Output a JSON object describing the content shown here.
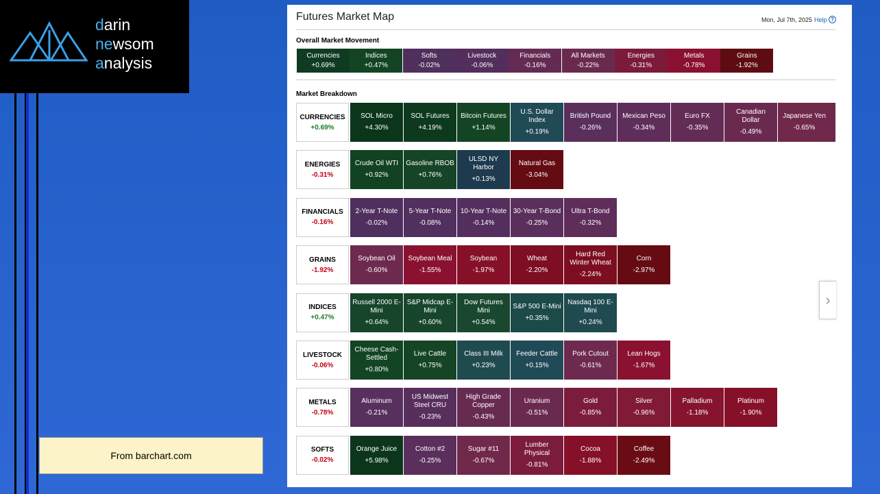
{
  "logo": {
    "lines": [
      {
        "accent": "d",
        "rest": "arin"
      },
      {
        "accent": "ne",
        "rest": "wsom"
      },
      {
        "accent": "a",
        "rest": "nalysis"
      }
    ]
  },
  "note": "From barchart.com",
  "header": {
    "title": "Futures Market Map",
    "date": "Mon, Jul 7th, 2025",
    "help": "Help"
  },
  "overall": {
    "title": "Overall Market Movement",
    "tiles": [
      {
        "name": "Currencies",
        "change": "+0.69%",
        "color": "#0f3b22"
      },
      {
        "name": "Indices",
        "change": "+0.47%",
        "color": "#134523"
      },
      {
        "name": "Softs",
        "change": "-0.02%",
        "color": "#4f2f5c"
      },
      {
        "name": "Livestock",
        "change": "-0.06%",
        "color": "#532d5b"
      },
      {
        "name": "Financials",
        "change": "-0.16%",
        "color": "#642a52"
      },
      {
        "name": "All Markets",
        "change": "-0.22%",
        "color": "#6a2a4d"
      },
      {
        "name": "Energies",
        "change": "-0.31%",
        "color": "#7c1a3a"
      },
      {
        "name": "Metals",
        "change": "-0.78%",
        "color": "#8a1030"
      },
      {
        "name": "Grains",
        "change": "-1.92%",
        "color": "#5e0b12"
      }
    ]
  },
  "breakdown": {
    "title": "Market Breakdown",
    "groups": [
      {
        "name": "CURRENCIES",
        "change": "+0.69%",
        "tiles": [
          {
            "name": "SOL Micro",
            "change": "+4.30%",
            "color": "#0b361c"
          },
          {
            "name": "SOL Futures",
            "change": "+4.19%",
            "color": "#0d3a1e"
          },
          {
            "name": "Bitcoin Futures",
            "change": "+1.14%",
            "color": "#134524"
          },
          {
            "name": "U.S. Dollar Index",
            "change": "+0.19%",
            "color": "#214a57"
          },
          {
            "name": "British Pound",
            "change": "-0.26%",
            "color": "#5a2f5c"
          },
          {
            "name": "Mexican Peso",
            "change": "-0.34%",
            "color": "#5e2d5a"
          },
          {
            "name": "Euro FX",
            "change": "-0.35%",
            "color": "#632c56"
          },
          {
            "name": "Canadian Dollar",
            "change": "-0.49%",
            "color": "#6a2a50"
          },
          {
            "name": "Japanese Yen",
            "change": "-0.65%",
            "color": "#70284b"
          }
        ]
      },
      {
        "name": "ENERGIES",
        "change": "-0.31%",
        "tiles": [
          {
            "name": "Crude Oil WTI",
            "change": "+0.92%",
            "color": "#114222"
          },
          {
            "name": "Gasoline RBOB",
            "change": "+0.76%",
            "color": "#154526"
          },
          {
            "name": "ULSD NY Harbor",
            "change": "+0.13%",
            "color": "#1d3a4e"
          },
          {
            "name": "Natural Gas",
            "change": "-3.04%",
            "color": "#650b12"
          }
        ]
      },
      {
        "name": "FINANCIALS",
        "change": "-0.16%",
        "tiles": [
          {
            "name": "2-Year T-Note",
            "change": "-0.02%",
            "color": "#4f2f5e"
          },
          {
            "name": "5-Year T-Note",
            "change": "-0.08%",
            "color": "#512f5e"
          },
          {
            "name": "10-Year T-Note",
            "change": "-0.14%",
            "color": "#542e5d"
          },
          {
            "name": "30-Year T-Bond",
            "change": "-0.25%",
            "color": "#5a2f5c"
          },
          {
            "name": "Ultra T-Bond",
            "change": "-0.32%",
            "color": "#5e2d5a"
          }
        ]
      },
      {
        "name": "GRAINS",
        "change": "-1.92%",
        "tiles": [
          {
            "name": "Soybean Oil",
            "change": "-0.60%",
            "color": "#6e2a4e"
          },
          {
            "name": "Soybean Meal",
            "change": "-1.55%",
            "color": "#8a1230"
          },
          {
            "name": "Soybean",
            "change": "-1.97%",
            "color": "#861028"
          },
          {
            "name": "Wheat",
            "change": "-2.20%",
            "color": "#7e0e22"
          },
          {
            "name": "Hard Red Winter Wheat",
            "change": "-2.24%",
            "color": "#7c0e20"
          },
          {
            "name": "Corn",
            "change": "-2.97%",
            "color": "#660b12"
          }
        ]
      },
      {
        "name": "INDICES",
        "change": "+0.47%",
        "tiles": [
          {
            "name": "Russell 2000 E-Mini",
            "change": "+0.64%",
            "color": "#16452a"
          },
          {
            "name": "S&P Midcap E-Mini",
            "change": "+0.60%",
            "color": "#17462c"
          },
          {
            "name": "Dow Futures Mini",
            "change": "+0.54%",
            "color": "#19472f"
          },
          {
            "name": "S&P 500 E-Mini",
            "change": "+0.35%",
            "color": "#1c4a48"
          },
          {
            "name": "Nasdaq 100 E-Mini",
            "change": "+0.24%",
            "color": "#1f4a50"
          }
        ]
      },
      {
        "name": "LIVESTOCK",
        "change": "-0.06%",
        "tiles": [
          {
            "name": "Cheese Cash-Settled",
            "change": "+0.80%",
            "color": "#134424"
          },
          {
            "name": "Live Cattle",
            "change": "+0.75%",
            "color": "#154526"
          },
          {
            "name": "Class III Milk",
            "change": "+0.23%",
            "color": "#1f4a50"
          },
          {
            "name": "Feeder Cattle",
            "change": "+0.15%",
            "color": "#214a57"
          },
          {
            "name": "Pork Cutout",
            "change": "-0.61%",
            "color": "#6e2a4e"
          },
          {
            "name": "Lean Hogs",
            "change": "-1.67%",
            "color": "#8a1230"
          }
        ]
      },
      {
        "name": "METALS",
        "change": "-0.78%",
        "tiles": [
          {
            "name": "Aluminum",
            "change": "-0.21%",
            "color": "#57305d"
          },
          {
            "name": "US Midwest Steel CRU",
            "change": "-0.23%",
            "color": "#582f5c"
          },
          {
            "name": "High Grade Copper",
            "change": "-0.43%",
            "color": "#672b52"
          },
          {
            "name": "Uranium",
            "change": "-0.51%",
            "color": "#6a2a50"
          },
          {
            "name": "Gold",
            "change": "-0.85%",
            "color": "#7c1c3c"
          },
          {
            "name": "Silver",
            "change": "-0.96%",
            "color": "#801a36"
          },
          {
            "name": "Palladium",
            "change": "-1.18%",
            "color": "#86142f"
          },
          {
            "name": "Platinum",
            "change": "-1.90%",
            "color": "#861028"
          }
        ]
      },
      {
        "name": "SOFTS",
        "change": "-0.02%",
        "tiles": [
          {
            "name": "Orange Juice",
            "change": "+5.98%",
            "color": "#0b361c"
          },
          {
            "name": "Cotton #2",
            "change": "-0.25%",
            "color": "#5a2f5c"
          },
          {
            "name": "Sugar #11",
            "change": "-0.67%",
            "color": "#70284b"
          },
          {
            "name": "Lumber Physical",
            "change": "-0.81%",
            "color": "#7c1c3c"
          },
          {
            "name": "Cocoa",
            "change": "-1.88%",
            "color": "#861028"
          },
          {
            "name": "Coffee",
            "change": "-2.49%",
            "color": "#6a0c14"
          }
        ]
      }
    ]
  }
}
